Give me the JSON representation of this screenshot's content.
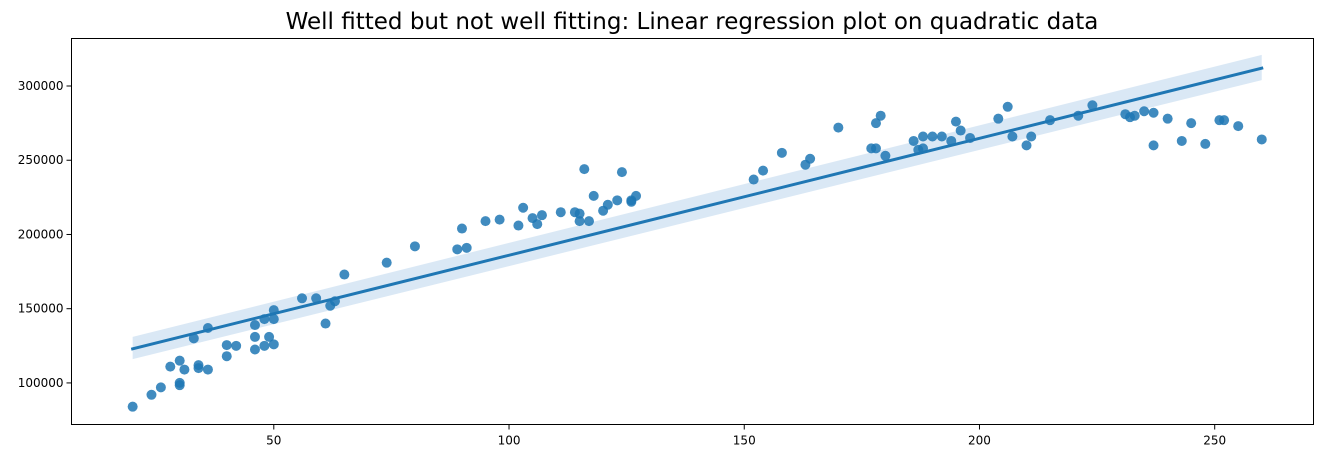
{
  "chart_data": {
    "type": "scatter",
    "title": "Well fitted but not well fitting: Linear regression plot on quadratic data",
    "xlabel": "",
    "ylabel": "",
    "xlim": [
      7,
      271
    ],
    "ylim": [
      72000,
      332000
    ],
    "x_ticks": [
      50,
      100,
      150,
      200,
      250
    ],
    "y_ticks": [
      100000,
      150000,
      200000,
      250000,
      300000
    ],
    "x_tick_labels": [
      "50",
      "100",
      "150",
      "200",
      "250"
    ],
    "y_tick_labels": [
      "100000",
      "150000",
      "200000",
      "250000",
      "300000"
    ],
    "grid": false,
    "legend": "none",
    "colors": {
      "points": "#1f77b4",
      "line": "#1f77b4",
      "band": "#c6dbef"
    },
    "regression": {
      "x": [
        20,
        260
      ],
      "y": [
        123000,
        312000
      ],
      "ci_lower": [
        116000,
        304000
      ],
      "ci_upper": [
        131000,
        321000
      ]
    },
    "series": [
      {
        "points": [
          [
            20,
            84000
          ],
          [
            24,
            92000
          ],
          [
            26,
            97000
          ],
          [
            28,
            111000
          ],
          [
            30,
            100000
          ],
          [
            30,
            98500
          ],
          [
            30,
            115000
          ],
          [
            31,
            109000
          ],
          [
            33,
            130000
          ],
          [
            34,
            112000
          ],
          [
            34,
            110000
          ],
          [
            36,
            109000
          ],
          [
            36,
            137000
          ],
          [
            40,
            125500
          ],
          [
            40,
            118000
          ],
          [
            42,
            125000
          ],
          [
            46,
            139000
          ],
          [
            46,
            131000
          ],
          [
            46,
            122500
          ],
          [
            48,
            125000
          ],
          [
            48,
            143000
          ],
          [
            49,
            131000
          ],
          [
            50,
            126000
          ],
          [
            50,
            149000
          ],
          [
            50,
            143000
          ],
          [
            56,
            157000
          ],
          [
            59,
            157000
          ],
          [
            61,
            140000
          ],
          [
            62,
            152000
          ],
          [
            63,
            155000
          ],
          [
            65,
            173000
          ],
          [
            74,
            181000
          ],
          [
            80,
            192000
          ],
          [
            89,
            190000
          ],
          [
            90,
            204000
          ],
          [
            91,
            191000
          ],
          [
            95,
            209000
          ],
          [
            98,
            210000
          ],
          [
            102,
            206000
          ],
          [
            103,
            218000
          ],
          [
            105,
            211000
          ],
          [
            106,
            207000
          ],
          [
            107,
            213000
          ],
          [
            111,
            215000
          ],
          [
            114,
            215000
          ],
          [
            115,
            209000
          ],
          [
            115,
            214000
          ],
          [
            116,
            244000
          ],
          [
            117,
            209000
          ],
          [
            118,
            226000
          ],
          [
            120,
            216000
          ],
          [
            121,
            220000
          ],
          [
            123,
            223000
          ],
          [
            124,
            242000
          ],
          [
            126,
            223000
          ],
          [
            126,
            222000
          ],
          [
            127,
            226000
          ],
          [
            152,
            237000
          ],
          [
            154,
            243000
          ],
          [
            158,
            255000
          ],
          [
            163,
            247000
          ],
          [
            164,
            251000
          ],
          [
            170,
            272000
          ],
          [
            177,
            258000
          ],
          [
            178,
            275000
          ],
          [
            178,
            258000
          ],
          [
            179,
            280000
          ],
          [
            180,
            253000
          ],
          [
            186,
            263000
          ],
          [
            187,
            257000
          ],
          [
            188,
            266000
          ],
          [
            188,
            258000
          ],
          [
            190,
            266000
          ],
          [
            192,
            266000
          ],
          [
            194,
            263000
          ],
          [
            195,
            276000
          ],
          [
            196,
            270000
          ],
          [
            198,
            265000
          ],
          [
            204,
            278000
          ],
          [
            206,
            286000
          ],
          [
            207,
            266000
          ],
          [
            210,
            260000
          ],
          [
            211,
            266000
          ],
          [
            215,
            277000
          ],
          [
            221,
            280000
          ],
          [
            224,
            287000
          ],
          [
            231,
            281000
          ],
          [
            232,
            279000
          ],
          [
            233,
            280000
          ],
          [
            235,
            283000
          ],
          [
            237,
            260000
          ],
          [
            237,
            282000
          ],
          [
            240,
            278000
          ],
          [
            243,
            263000
          ],
          [
            245,
            275000
          ],
          [
            248,
            261000
          ],
          [
            251,
            277000
          ],
          [
            252,
            277000
          ],
          [
            255,
            273000
          ],
          [
            260,
            264000
          ]
        ]
      }
    ]
  }
}
